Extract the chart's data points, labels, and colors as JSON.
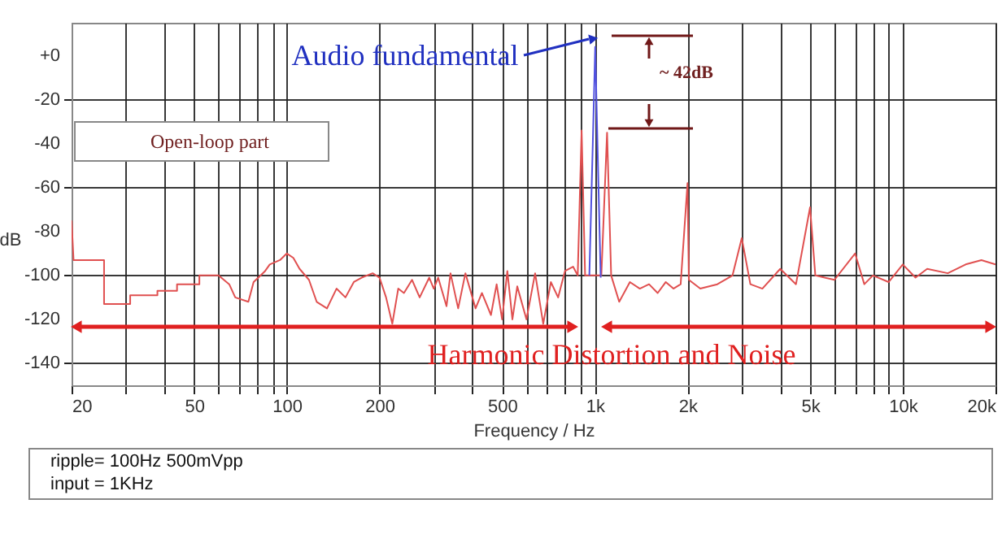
{
  "chart_data": {
    "type": "line",
    "xlabel": "Frequency / Hz",
    "ylabel": "dB",
    "annotations": [
      "Audio fundamental",
      "~ 42dB",
      "Open-loop part",
      "Harmonic Distortion and Noise",
      "ripple= 100Hz 500mVpp",
      "input = 1KHz"
    ],
    "series": [
      {
        "color": "#e05050",
        "x": [
          20,
          20.3,
          20.6,
          25.5,
          25.5,
          31,
          31,
          38,
          38,
          44,
          44,
          52,
          52,
          60,
          65,
          68,
          75,
          78,
          85,
          88,
          95,
          100,
          105,
          110,
          118,
          125,
          135,
          145,
          155,
          165,
          175,
          190,
          200,
          210,
          220,
          230,
          240,
          255,
          270,
          290,
          300,
          310,
          330,
          340,
          360,
          380,
          410,
          430,
          460,
          480,
          500,
          520,
          540,
          560,
          600,
          640,
          680,
          720,
          760,
          800,
          850,
          880,
          906,
          930,
          960,
          1050,
          1096,
          1130,
          1200,
          1300,
          1400,
          1500,
          1600,
          1700,
          1800,
          1900,
          2000,
          2020,
          2200,
          2500,
          2800,
          3000,
          3200,
          3500,
          4000,
          4500,
          5000,
          5200,
          6000,
          7000,
          7500,
          8000,
          9000,
          10000,
          11000,
          12000,
          14000,
          16000,
          18000,
          20000
        ],
        "values": [
          -75,
          -93,
          -93,
          -93,
          -113,
          -113,
          -109,
          -109,
          -107,
          -107,
          -104,
          -104,
          -100,
          -100,
          -104,
          -110,
          -112,
          -103,
          -98,
          -95,
          -93,
          -90,
          -92,
          -97,
          -102,
          -112,
          -115,
          -106,
          -110,
          -103,
          -101,
          -99,
          -101,
          -110,
          -122,
          -106,
          -108,
          -102,
          -110,
          -101,
          -106,
          -101,
          -114,
          -99,
          -115,
          -99,
          -115,
          -108,
          -118,
          -104,
          -120,
          -98,
          -120,
          -105,
          -120,
          -99,
          -122,
          -103,
          -110,
          -98,
          -96,
          -100,
          -34,
          -100,
          -100,
          -100,
          -35,
          -100,
          -112,
          -103,
          -106,
          -104,
          -108,
          -103,
          -106,
          -104,
          -58,
          -102,
          -106,
          -104,
          -100,
          -83,
          -104,
          -106,
          -97,
          -104,
          -69,
          -100,
          -102,
          -90,
          -104,
          -100,
          -103,
          -95,
          -101,
          -97,
          -99,
          -95,
          -93,
          -95
        ]
      },
      {
        "color": "#5050e0",
        "x": [
          960,
          985,
          1003,
          1020,
          1045
        ],
        "values": [
          -100,
          -40,
          4,
          -40,
          -101
        ]
      }
    ],
    "xlim": [
      20,
      20000
    ],
    "ylim": [
      -150,
      15
    ],
    "log": "x",
    "xticks": [
      20,
      {
        "value": 30,
        "label": null
      },
      {
        "value": 40,
        "label": null
      },
      50,
      {
        "value": 60,
        "label": null
      },
      {
        "value": 70,
        "label": null
      },
      {
        "value": 80,
        "label": null
      },
      {
        "value": 90,
        "label": null
      },
      100,
      200,
      {
        "value": 300,
        "label": null
      },
      {
        "value": 400,
        "label": null
      },
      500,
      {
        "value": 600,
        "label": null
      },
      {
        "value": 700,
        "label": null
      },
      {
        "value": 800,
        "label": null
      },
      {
        "value": 900,
        "label": null
      },
      {
        "value": 1000,
        "label": "1k"
      },
      {
        "value": 2000,
        "label": "2k"
      },
      {
        "value": 3000,
        "label": null
      },
      {
        "value": 4000,
        "label": null
      },
      {
        "value": 5000,
        "label": "5k"
      },
      {
        "value": 6000,
        "label": null
      },
      {
        "value": 7000,
        "label": null
      },
      {
        "value": 8000,
        "label": null
      },
      {
        "value": 9000,
        "label": null
      },
      {
        "value": 10000,
        "label": "10k"
      },
      {
        "value": 20000,
        "label": "20k"
      }
    ],
    "yticks": [
      {
        "value": 0,
        "label": "+0"
      },
      -20,
      -40,
      -60,
      -80,
      -100,
      -120,
      -140
    ],
    "grid": true,
    "marker": "none",
    "line_style": "solid"
  }
}
